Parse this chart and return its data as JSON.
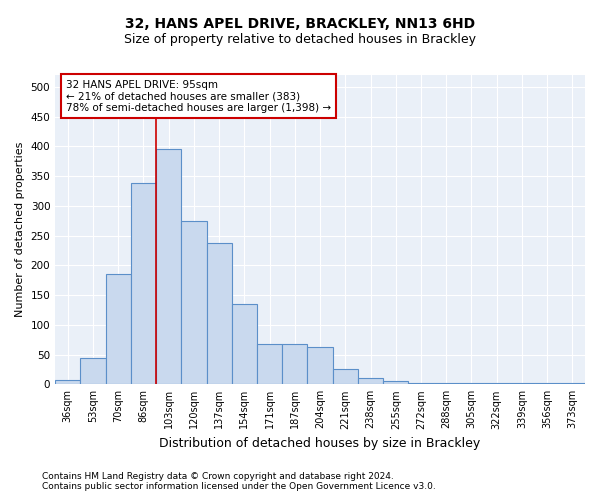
{
  "title_line1": "32, HANS APEL DRIVE, BRACKLEY, NN13 6HD",
  "title_line2": "Size of property relative to detached houses in Brackley",
  "xlabel": "Distribution of detached houses by size in Brackley",
  "ylabel": "Number of detached properties",
  "categories": [
    "36sqm",
    "53sqm",
    "70sqm",
    "86sqm",
    "103sqm",
    "120sqm",
    "137sqm",
    "154sqm",
    "171sqm",
    "187sqm",
    "204sqm",
    "221sqm",
    "238sqm",
    "255sqm",
    "272sqm",
    "288sqm",
    "305sqm",
    "322sqm",
    "339sqm",
    "356sqm",
    "373sqm"
  ],
  "values": [
    8,
    45,
    185,
    338,
    395,
    275,
    238,
    135,
    68,
    68,
    62,
    25,
    10,
    5,
    3,
    3,
    2,
    2,
    2,
    2,
    3
  ],
  "bar_color": "#c9d9ee",
  "bar_edge_color": "#5b8fc9",
  "annotation_text_line1": "32 HANS APEL DRIVE: 95sqm",
  "annotation_text_line2": "← 21% of detached houses are smaller (383)",
  "annotation_text_line3": "78% of semi-detached houses are larger (1,398) →",
  "annotation_box_color": "#ffffff",
  "annotation_box_edge": "#cc0000",
  "property_line_x": 3.5,
  "footnote1": "Contains HM Land Registry data © Crown copyright and database right 2024.",
  "footnote2": "Contains public sector information licensed under the Open Government Licence v3.0.",
  "ylim": [
    0,
    520
  ],
  "background_color": "#eaf0f8",
  "grid_color": "#ffffff",
  "title_fontsize": 10,
  "subtitle_fontsize": 9,
  "tick_fontsize": 7,
  "ylabel_fontsize": 8,
  "xlabel_fontsize": 9,
  "annotation_fontsize": 7.5,
  "footnote_fontsize": 6.5
}
